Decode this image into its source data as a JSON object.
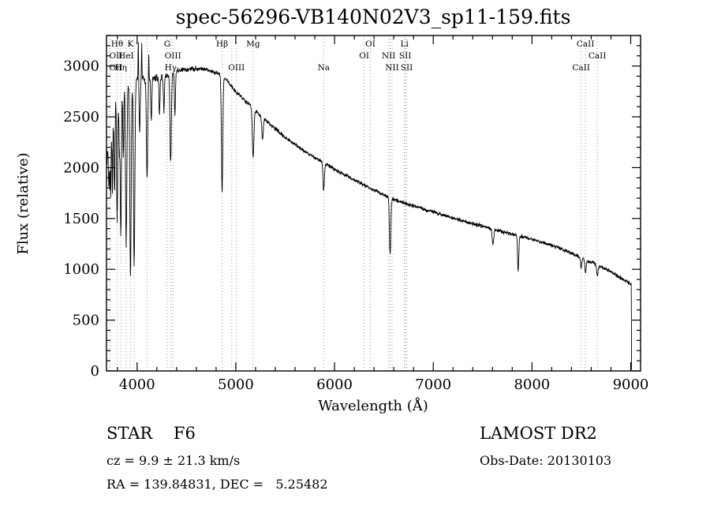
{
  "title": "spec-56296-VB140N02V3_sp11-159.fits",
  "footer": {
    "class_label": "STAR    F6",
    "survey": "LAMOST DR2",
    "cz": "cz = 9.9 ± 21.3 km/s",
    "obs_date": "Obs-Date: 20130103",
    "coords": "RA = 139.84831, DEC =   5.25482"
  },
  "chart_data": {
    "type": "line",
    "title": "spec-56296-VB140N02V3_sp11-159.fits",
    "xlabel": "Wavelength (Å)",
    "ylabel": "Flux (relative)",
    "xlim": [
      3690,
      9100
    ],
    "ylim": [
      0,
      3300
    ],
    "xticks": [
      4000,
      5000,
      6000,
      7000,
      8000,
      9000
    ],
    "yticks": [
      0,
      500,
      1000,
      1500,
      2000,
      2500,
      3000
    ],
    "x_minor_step": 200,
    "y_minor_step": 100,
    "grid": false,
    "line_color": "#000000",
    "marker_color": "#999999",
    "marker_wavelengths": [
      3725,
      3727,
      3798,
      3835,
      3889,
      3933,
      3970,
      4101,
      4305,
      4340,
      4363,
      4861,
      4959,
      5007,
      5175,
      5890,
      6300,
      6363,
      6548,
      6563,
      6583,
      6708,
      6716,
      6731,
      8498,
      8542,
      8662
    ],
    "line_labels": [
      {
        "text": "Hθ",
        "wl": 3798,
        "row": 0
      },
      {
        "text": "K",
        "wl": 3933,
        "row": 0
      },
      {
        "text": "G",
        "wl": 4305,
        "row": 0
      },
      {
        "text": "Hβ",
        "wl": 4861,
        "row": 0
      },
      {
        "text": "Mg",
        "wl": 5175,
        "row": 0
      },
      {
        "text": "OI",
        "wl": 6363,
        "row": 0
      },
      {
        "text": "Li",
        "wl": 6708,
        "row": 0
      },
      {
        "text": "CaII",
        "wl": 8542,
        "row": 0
      },
      {
        "text": "OII",
        "wl": 3725,
        "row": 1
      },
      {
        "text": "HeI",
        "wl": 3889,
        "row": 1
      },
      {
        "text": "OIII",
        "wl": 4363,
        "row": 1
      },
      {
        "text": "OI",
        "wl": 6300,
        "row": 1
      },
      {
        "text": "NII",
        "wl": 6548,
        "row": 1
      },
      {
        "text": "SII",
        "wl": 6716,
        "row": 1
      },
      {
        "text": "CaII",
        "wl": 8662,
        "row": 1
      },
      {
        "text": "OII",
        "wl": 3727,
        "row": 2
      },
      {
        "text": "Hη",
        "wl": 3835,
        "row": 2
      },
      {
        "text": "Hγ",
        "wl": 4340,
        "row": 2
      },
      {
        "text": "OIII",
        "wl": 5007,
        "row": 2
      },
      {
        "text": "Na",
        "wl": 5890,
        "row": 2
      },
      {
        "text": "NII",
        "wl": 6583,
        "row": 2
      },
      {
        "text": "SII",
        "wl": 6731,
        "row": 2
      },
      {
        "text": "CaII",
        "wl": 8498,
        "row": 2
      }
    ],
    "continuum": [
      [
        3693,
        2050
      ],
      [
        3710,
        2450
      ],
      [
        3725,
        2600
      ],
      [
        3745,
        2700
      ],
      [
        3770,
        2780
      ],
      [
        3800,
        2800
      ],
      [
        3830,
        2800
      ],
      [
        3860,
        2810
      ],
      [
        3900,
        2830
      ],
      [
        3940,
        2840
      ],
      [
        3980,
        2850
      ],
      [
        4020,
        2860
      ],
      [
        4060,
        2865
      ],
      [
        4100,
        2870
      ],
      [
        4150,
        2875
      ],
      [
        4200,
        2880
      ],
      [
        4250,
        2890
      ],
      [
        4300,
        2905
      ],
      [
        4350,
        2925
      ],
      [
        4400,
        2945
      ],
      [
        4450,
        2960
      ],
      [
        4500,
        2965
      ],
      [
        4550,
        2970
      ],
      [
        4600,
        2975
      ],
      [
        4650,
        2975
      ],
      [
        4700,
        2965
      ],
      [
        4750,
        2950
      ],
      [
        4800,
        2935
      ],
      [
        4850,
        2920
      ],
      [
        4900,
        2870
      ],
      [
        4950,
        2810
      ],
      [
        5000,
        2750
      ],
      [
        5050,
        2700
      ],
      [
        5100,
        2655
      ],
      [
        5150,
        2615
      ],
      [
        5200,
        2560
      ],
      [
        5250,
        2510
      ],
      [
        5300,
        2465
      ],
      [
        5350,
        2425
      ],
      [
        5400,
        2380
      ],
      [
        5450,
        2340
      ],
      [
        5500,
        2300
      ],
      [
        5550,
        2265
      ],
      [
        5600,
        2230
      ],
      [
        5650,
        2195
      ],
      [
        5700,
        2160
      ],
      [
        5750,
        2130
      ],
      [
        5800,
        2100
      ],
      [
        5850,
        2070
      ],
      [
        5900,
        2040
      ],
      [
        5950,
        2015
      ],
      [
        6000,
        1985
      ],
      [
        6050,
        1960
      ],
      [
        6100,
        1930
      ],
      [
        6150,
        1905
      ],
      [
        6200,
        1880
      ],
      [
        6250,
        1855
      ],
      [
        6300,
        1830
      ],
      [
        6350,
        1805
      ],
      [
        6400,
        1780
      ],
      [
        6450,
        1755
      ],
      [
        6500,
        1730
      ],
      [
        6550,
        1710
      ],
      [
        6600,
        1690
      ],
      [
        6650,
        1670
      ],
      [
        6700,
        1655
      ],
      [
        6750,
        1640
      ],
      [
        6800,
        1625
      ],
      [
        6850,
        1610
      ],
      [
        6900,
        1595
      ],
      [
        6950,
        1580
      ],
      [
        7000,
        1565
      ],
      [
        7100,
        1535
      ],
      [
        7200,
        1505
      ],
      [
        7300,
        1475
      ],
      [
        7400,
        1450
      ],
      [
        7500,
        1425
      ],
      [
        7600,
        1400
      ],
      [
        7700,
        1370
      ],
      [
        7800,
        1345
      ],
      [
        7900,
        1320
      ],
      [
        8000,
        1295
      ],
      [
        8100,
        1265
      ],
      [
        8200,
        1235
      ],
      [
        8300,
        1200
      ],
      [
        8400,
        1160
      ],
      [
        8500,
        1115
      ],
      [
        8600,
        1070
      ],
      [
        8700,
        1025
      ],
      [
        8800,
        975
      ],
      [
        8900,
        915
      ],
      [
        8960,
        880
      ],
      [
        9005,
        855
      ]
    ],
    "absorption_lines": [
      [
        3712,
        500,
        5
      ],
      [
        3722,
        600,
        5
      ],
      [
        3734,
        800,
        5
      ],
      [
        3750,
        950,
        5
      ],
      [
        3771,
        1050,
        6
      ],
      [
        3798,
        1250,
        6
      ],
      [
        3820,
        600,
        5
      ],
      [
        3835,
        1450,
        6
      ],
      [
        3860,
        700,
        5
      ],
      [
        3889,
        1550,
        7
      ],
      [
        3933,
        1880,
        7
      ],
      [
        3970,
        1800,
        7
      ],
      [
        4026,
        520,
        5
      ],
      [
        4101,
        980,
        7
      ],
      [
        4144,
        400,
        5
      ],
      [
        4227,
        350,
        5
      ],
      [
        4272,
        350,
        5
      ],
      [
        4340,
        860,
        7
      ],
      [
        4383,
        420,
        5
      ],
      [
        4861,
        1150,
        7
      ],
      [
        5175,
        480,
        8
      ],
      [
        5270,
        220,
        7
      ],
      [
        5890,
        270,
        7
      ],
      [
        6563,
        550,
        7
      ],
      [
        7605,
        150,
        8
      ],
      [
        7860,
        340,
        6
      ],
      [
        8498,
        100,
        6
      ],
      [
        8542,
        130,
        7
      ],
      [
        8662,
        110,
        7
      ],
      [
        4012,
        -380,
        2.5
      ],
      [
        4047,
        -380,
        2.5
      ],
      [
        4118,
        -300,
        2.5
      ]
    ],
    "noise_profile": [
      [
        3695,
        200
      ],
      [
        3800,
        120
      ],
      [
        4000,
        60
      ],
      [
        4700,
        32
      ],
      [
        6000,
        26
      ],
      [
        8000,
        28
      ],
      [
        9000,
        30
      ]
    ],
    "noise_seed": 7,
    "cutoff_wl": 9009
  }
}
